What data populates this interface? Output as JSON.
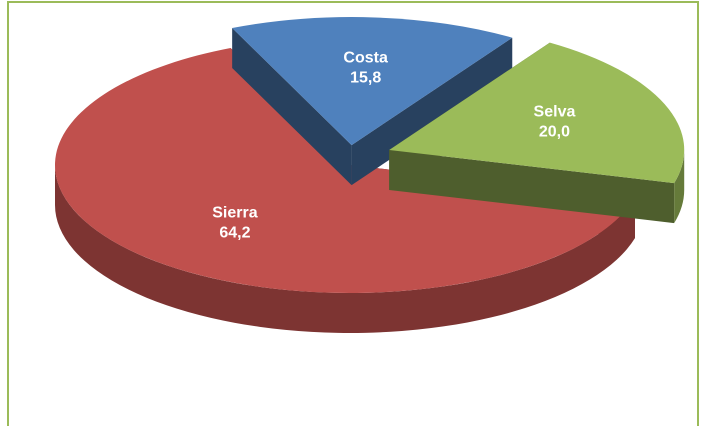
{
  "chart_data": {
    "type": "pie",
    "categories": [
      "Sierra",
      "Costa",
      "Selva"
    ],
    "values": [
      64.2,
      15.8,
      20.0
    ],
    "value_labels": [
      "64,2",
      "15,8",
      "20,0"
    ],
    "colors": [
      "#c0504d",
      "#4f81bd",
      "#9bbb59"
    ]
  }
}
